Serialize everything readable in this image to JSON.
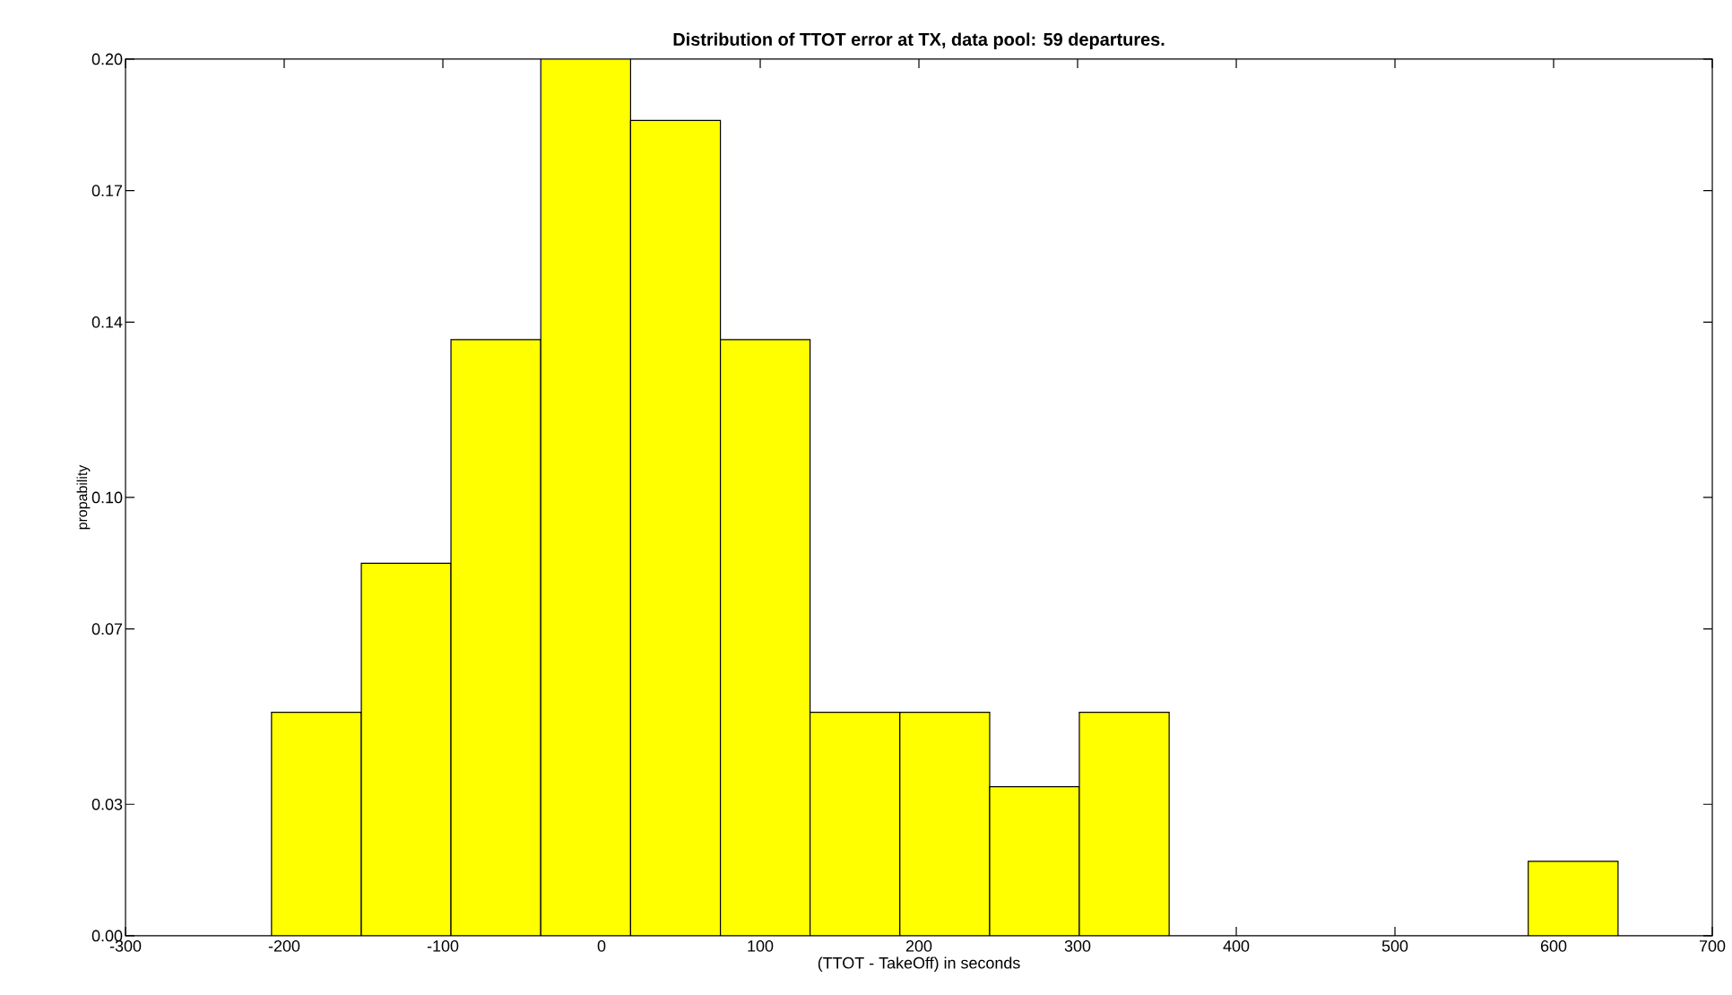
{
  "chart_data": {
    "type": "histogram",
    "title": "Distribution of TTOT error at TX, data pool: 59 departures.",
    "xlabel": "(TTOT - TakeOff) in seconds",
    "ylabel": "propability",
    "bins": [
      -208,
      -151.4,
      -94.9,
      -38.3,
      18.3,
      74.9,
      131.4,
      188.0,
      244.6,
      301.1,
      357.7,
      414.3,
      470.9,
      527.4,
      584.0,
      640.6
    ],
    "values": [
      0.051,
      0.085,
      0.136,
      0.2,
      0.186,
      0.136,
      0.051,
      0.051,
      0.034,
      0.051,
      0,
      0,
      0,
      0,
      0.017
    ],
    "color": "#ffff00",
    "xlim": [
      -300,
      700
    ],
    "ylim": [
      0,
      0.2
    ],
    "xticks": [
      -300,
      -200,
      -100,
      0,
      100,
      200,
      300,
      400,
      500,
      600,
      700
    ],
    "yticks": [
      {
        "value": 0,
        "label": "0.00"
      },
      {
        "value": 0.03,
        "label": "0.03"
      },
      {
        "value": 0.07,
        "label": "0.07"
      },
      {
        "value": 0.1,
        "label": "0.10"
      },
      {
        "value": 0.14,
        "label": "0.14"
      },
      {
        "value": 0.17,
        "label": "0.17"
      },
      {
        "value": 0.2,
        "label": "0.20"
      }
    ]
  }
}
